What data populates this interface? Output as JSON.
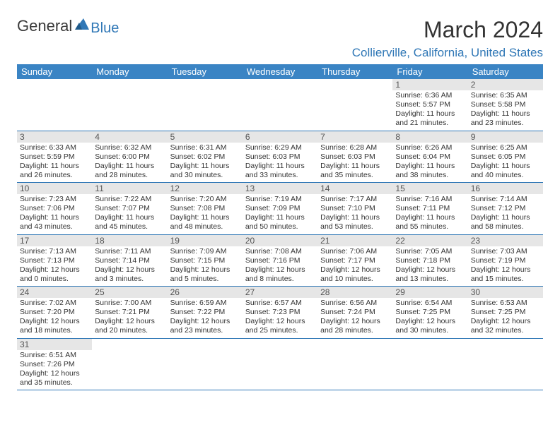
{
  "logo": {
    "text1": "General",
    "text2": "Blue"
  },
  "title": "March 2024",
  "location": "Collierville, California, United States",
  "headers": [
    "Sunday",
    "Monday",
    "Tuesday",
    "Wednesday",
    "Thursday",
    "Friday",
    "Saturday"
  ],
  "colors": {
    "header_bg": "#3a84c4",
    "header_fg": "#ffffff",
    "accent": "#2f77b6",
    "daynum_bg": "#e6e6e6",
    "text": "#333333"
  },
  "weeks": [
    [
      null,
      null,
      null,
      null,
      null,
      {
        "n": "1",
        "sr": "Sunrise: 6:36 AM",
        "ss": "Sunset: 5:57 PM",
        "d1": "Daylight: 11 hours",
        "d2": "and 21 minutes."
      },
      {
        "n": "2",
        "sr": "Sunrise: 6:35 AM",
        "ss": "Sunset: 5:58 PM",
        "d1": "Daylight: 11 hours",
        "d2": "and 23 minutes."
      }
    ],
    [
      {
        "n": "3",
        "sr": "Sunrise: 6:33 AM",
        "ss": "Sunset: 5:59 PM",
        "d1": "Daylight: 11 hours",
        "d2": "and 26 minutes."
      },
      {
        "n": "4",
        "sr": "Sunrise: 6:32 AM",
        "ss": "Sunset: 6:00 PM",
        "d1": "Daylight: 11 hours",
        "d2": "and 28 minutes."
      },
      {
        "n": "5",
        "sr": "Sunrise: 6:31 AM",
        "ss": "Sunset: 6:02 PM",
        "d1": "Daylight: 11 hours",
        "d2": "and 30 minutes."
      },
      {
        "n": "6",
        "sr": "Sunrise: 6:29 AM",
        "ss": "Sunset: 6:03 PM",
        "d1": "Daylight: 11 hours",
        "d2": "and 33 minutes."
      },
      {
        "n": "7",
        "sr": "Sunrise: 6:28 AM",
        "ss": "Sunset: 6:03 PM",
        "d1": "Daylight: 11 hours",
        "d2": "and 35 minutes."
      },
      {
        "n": "8",
        "sr": "Sunrise: 6:26 AM",
        "ss": "Sunset: 6:04 PM",
        "d1": "Daylight: 11 hours",
        "d2": "and 38 minutes."
      },
      {
        "n": "9",
        "sr": "Sunrise: 6:25 AM",
        "ss": "Sunset: 6:05 PM",
        "d1": "Daylight: 11 hours",
        "d2": "and 40 minutes."
      }
    ],
    [
      {
        "n": "10",
        "sr": "Sunrise: 7:23 AM",
        "ss": "Sunset: 7:06 PM",
        "d1": "Daylight: 11 hours",
        "d2": "and 43 minutes."
      },
      {
        "n": "11",
        "sr": "Sunrise: 7:22 AM",
        "ss": "Sunset: 7:07 PM",
        "d1": "Daylight: 11 hours",
        "d2": "and 45 minutes."
      },
      {
        "n": "12",
        "sr": "Sunrise: 7:20 AM",
        "ss": "Sunset: 7:08 PM",
        "d1": "Daylight: 11 hours",
        "d2": "and 48 minutes."
      },
      {
        "n": "13",
        "sr": "Sunrise: 7:19 AM",
        "ss": "Sunset: 7:09 PM",
        "d1": "Daylight: 11 hours",
        "d2": "and 50 minutes."
      },
      {
        "n": "14",
        "sr": "Sunrise: 7:17 AM",
        "ss": "Sunset: 7:10 PM",
        "d1": "Daylight: 11 hours",
        "d2": "and 53 minutes."
      },
      {
        "n": "15",
        "sr": "Sunrise: 7:16 AM",
        "ss": "Sunset: 7:11 PM",
        "d1": "Daylight: 11 hours",
        "d2": "and 55 minutes."
      },
      {
        "n": "16",
        "sr": "Sunrise: 7:14 AM",
        "ss": "Sunset: 7:12 PM",
        "d1": "Daylight: 11 hours",
        "d2": "and 58 minutes."
      }
    ],
    [
      {
        "n": "17",
        "sr": "Sunrise: 7:13 AM",
        "ss": "Sunset: 7:13 PM",
        "d1": "Daylight: 12 hours",
        "d2": "and 0 minutes."
      },
      {
        "n": "18",
        "sr": "Sunrise: 7:11 AM",
        "ss": "Sunset: 7:14 PM",
        "d1": "Daylight: 12 hours",
        "d2": "and 3 minutes."
      },
      {
        "n": "19",
        "sr": "Sunrise: 7:09 AM",
        "ss": "Sunset: 7:15 PM",
        "d1": "Daylight: 12 hours",
        "d2": "and 5 minutes."
      },
      {
        "n": "20",
        "sr": "Sunrise: 7:08 AM",
        "ss": "Sunset: 7:16 PM",
        "d1": "Daylight: 12 hours",
        "d2": "and 8 minutes."
      },
      {
        "n": "21",
        "sr": "Sunrise: 7:06 AM",
        "ss": "Sunset: 7:17 PM",
        "d1": "Daylight: 12 hours",
        "d2": "and 10 minutes."
      },
      {
        "n": "22",
        "sr": "Sunrise: 7:05 AM",
        "ss": "Sunset: 7:18 PM",
        "d1": "Daylight: 12 hours",
        "d2": "and 13 minutes."
      },
      {
        "n": "23",
        "sr": "Sunrise: 7:03 AM",
        "ss": "Sunset: 7:19 PM",
        "d1": "Daylight: 12 hours",
        "d2": "and 15 minutes."
      }
    ],
    [
      {
        "n": "24",
        "sr": "Sunrise: 7:02 AM",
        "ss": "Sunset: 7:20 PM",
        "d1": "Daylight: 12 hours",
        "d2": "and 18 minutes."
      },
      {
        "n": "25",
        "sr": "Sunrise: 7:00 AM",
        "ss": "Sunset: 7:21 PM",
        "d1": "Daylight: 12 hours",
        "d2": "and 20 minutes."
      },
      {
        "n": "26",
        "sr": "Sunrise: 6:59 AM",
        "ss": "Sunset: 7:22 PM",
        "d1": "Daylight: 12 hours",
        "d2": "and 23 minutes."
      },
      {
        "n": "27",
        "sr": "Sunrise: 6:57 AM",
        "ss": "Sunset: 7:23 PM",
        "d1": "Daylight: 12 hours",
        "d2": "and 25 minutes."
      },
      {
        "n": "28",
        "sr": "Sunrise: 6:56 AM",
        "ss": "Sunset: 7:24 PM",
        "d1": "Daylight: 12 hours",
        "d2": "and 28 minutes."
      },
      {
        "n": "29",
        "sr": "Sunrise: 6:54 AM",
        "ss": "Sunset: 7:25 PM",
        "d1": "Daylight: 12 hours",
        "d2": "and 30 minutes."
      },
      {
        "n": "30",
        "sr": "Sunrise: 6:53 AM",
        "ss": "Sunset: 7:25 PM",
        "d1": "Daylight: 12 hours",
        "d2": "and 32 minutes."
      }
    ],
    [
      {
        "n": "31",
        "sr": "Sunrise: 6:51 AM",
        "ss": "Sunset: 7:26 PM",
        "d1": "Daylight: 12 hours",
        "d2": "and 35 minutes."
      },
      null,
      null,
      null,
      null,
      null,
      null
    ]
  ]
}
